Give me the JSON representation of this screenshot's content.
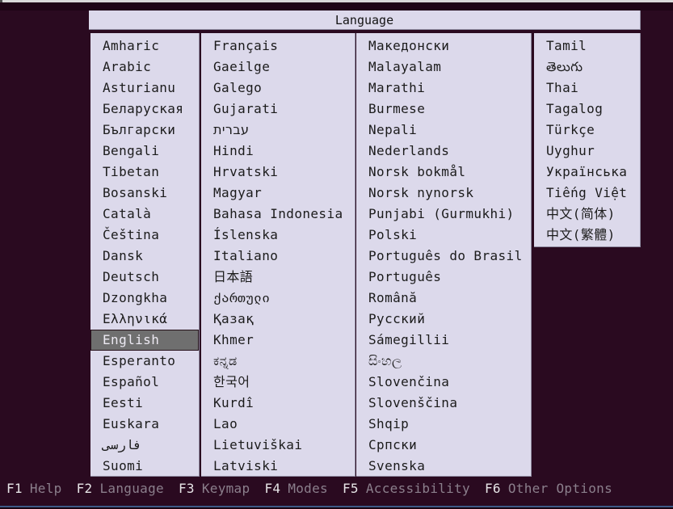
{
  "title": "Language",
  "selected": "English",
  "columns": {
    "col1": [
      "Amharic",
      "Arabic",
      "Asturianu",
      "Беларуская",
      "Български",
      "Bengali",
      "Tibetan",
      "Bosanski",
      "Català",
      "Čeština",
      "Dansk",
      "Deutsch",
      "Dzongkha",
      "Ελληνικά",
      "English",
      "Esperanto",
      "Español",
      "Eesti",
      "Euskara",
      "فارسی",
      "Suomi"
    ],
    "col2": [
      "Français",
      "Gaeilge",
      "Galego",
      "Gujarati",
      "עברית",
      "Hindi",
      "Hrvatski",
      "Magyar",
      "Bahasa Indonesia",
      "Íslenska",
      "Italiano",
      "日本語",
      "ქართული",
      "Қазақ",
      "Khmer",
      "ಕನ್ನಡ",
      "한국어",
      "Kurdî",
      "Lao",
      "Lietuviškai",
      "Latviski"
    ],
    "col3": [
      "Македонски",
      "Malayalam",
      "Marathi",
      "Burmese",
      "Nepali",
      "Nederlands",
      "Norsk bokmål",
      "Norsk nynorsk",
      "Punjabi (Gurmukhi)",
      "Polski",
      "Português do Brasil",
      "Português",
      "Română",
      "Русский",
      "Sámegillii",
      "සිංහල",
      "Slovenčina",
      "Slovenščina",
      "Shqip",
      "Српски",
      "Svenska"
    ],
    "col4": [
      "Tamil",
      "తెలుగు",
      "Thai",
      "Tagalog",
      "Türkçe",
      "Uyghur",
      "Українська",
      "Tiếng Việt",
      "中文(简体)",
      "中文(繁體)"
    ]
  },
  "function_bar": [
    {
      "key": "F1",
      "label": "Help"
    },
    {
      "key": "F2",
      "label": "Language"
    },
    {
      "key": "F3",
      "label": "Keymap"
    },
    {
      "key": "F4",
      "label": "Modes"
    },
    {
      "key": "F5",
      "label": "Accessibility"
    },
    {
      "key": "F6",
      "label": "Other Options"
    }
  ],
  "colors": {
    "background": "#2a0a20",
    "panel": "#dcd9eb",
    "text": "#1b1b1b",
    "highlight_bg": "#6f6f6f",
    "highlight_text": "#edeaf3",
    "fkey_text": "#e6e4e6",
    "flabel_text": "#8b7f8c",
    "bottom_line": "#3d5a86",
    "top_strip": "#d8d8d8"
  }
}
